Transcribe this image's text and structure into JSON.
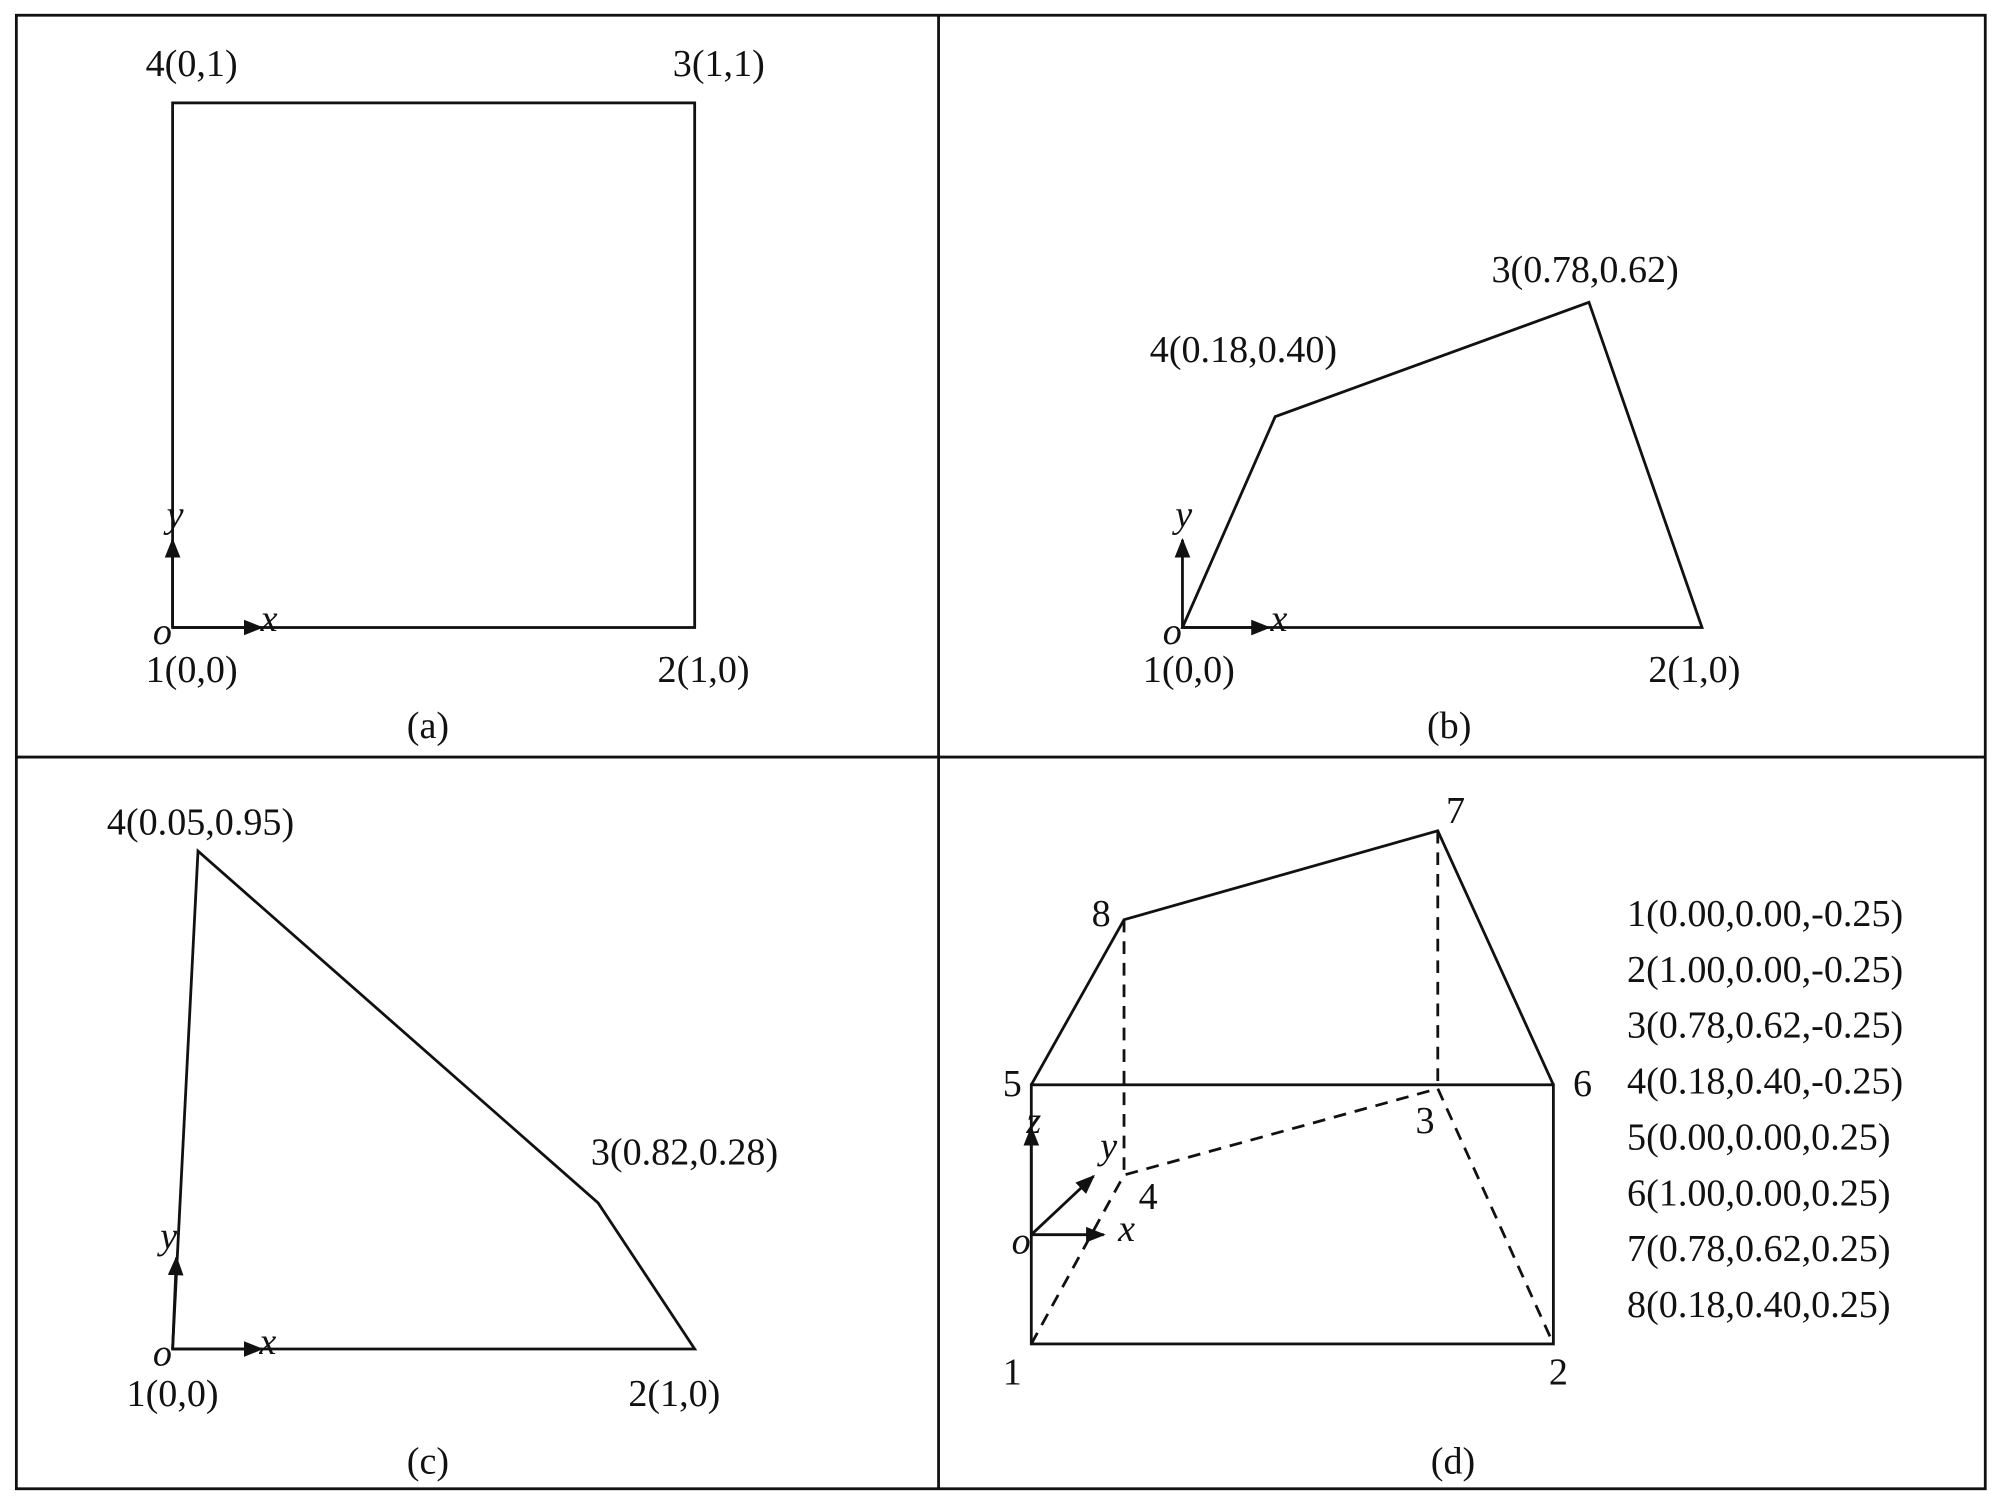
{
  "panels": [
    {
      "caption": "(a)",
      "vertex_labels": [
        "1(0,0)",
        "2(1,0)",
        "3(1,1)",
        "4(0,1)"
      ],
      "axis_labels": {
        "origin": "o",
        "x": "x",
        "y": "y"
      }
    },
    {
      "caption": "(b)",
      "vertex_labels": [
        "1(0,0)",
        "2(1,0)",
        "3(0.78,0.62)",
        "4(0.18,0.40)"
      ],
      "axis_labels": {
        "origin": "o",
        "x": "x",
        "y": "y"
      }
    },
    {
      "caption": "(c)",
      "vertex_labels": [
        "1(0,0)",
        "2(1,0)",
        "3(0.82,0.28)",
        "4(0.05,0.95)"
      ],
      "axis_labels": {
        "origin": "o",
        "x": "x",
        "y": "y"
      }
    },
    {
      "caption": "(d)",
      "vertex_labels": [
        "1",
        "2",
        "3",
        "4",
        "5",
        "6",
        "7",
        "8"
      ],
      "axis_labels": {
        "origin": "o",
        "x": "x",
        "y": "y",
        "z": "z"
      },
      "coordinates": [
        "1(0.00,0.00,-0.25)",
        "2(1.00,0.00,-0.25)",
        "3(0.78,0.62,-0.25)",
        "4(0.18,0.40,-0.25)",
        "5(0.00,0.00,0.25)",
        "6(1.00,0.00,0.25)",
        "7(0.78,0.62,0.25)",
        "8(0.18,0.40,0.25)"
      ]
    }
  ]
}
